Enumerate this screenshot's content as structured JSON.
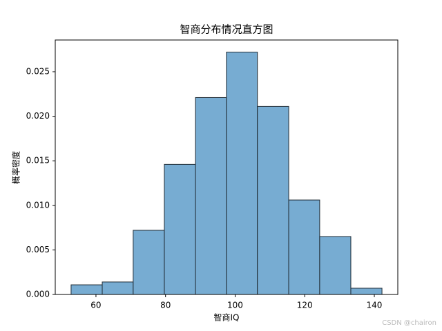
{
  "chart_data": {
    "type": "histogram",
    "title": "智商分布情况直方图",
    "xlabel": "智商IQ",
    "ylabel": "概率密度",
    "bins": [
      52.85,
      61.8,
      70.7,
      79.65,
      88.6,
      97.5,
      106.4,
      115.4,
      124.3,
      133.25,
      142.2
    ],
    "values": [
      0.00108,
      0.0014,
      0.0072,
      0.0146,
      0.0221,
      0.0272,
      0.0211,
      0.0106,
      0.0065,
      0.0007
    ],
    "color": "#77acd2",
    "edgecolor": "#1f2a33",
    "xlim": [
      48.3,
      146.75
    ],
    "xticks": [
      60,
      80,
      100,
      120,
      140
    ],
    "ylim": [
      0,
      0.02856
    ],
    "yticks": [
      {
        "value": 0,
        "label": "0.000"
      },
      {
        "value": 0.005,
        "label": "0.005"
      },
      {
        "value": 0.01,
        "label": "0.010"
      },
      {
        "value": 0.015,
        "label": "0.015"
      },
      {
        "value": 0.02,
        "label": "0.020"
      },
      {
        "value": 0.025,
        "label": "0.025"
      }
    ],
    "watermark": "CSDN @chairon"
  }
}
